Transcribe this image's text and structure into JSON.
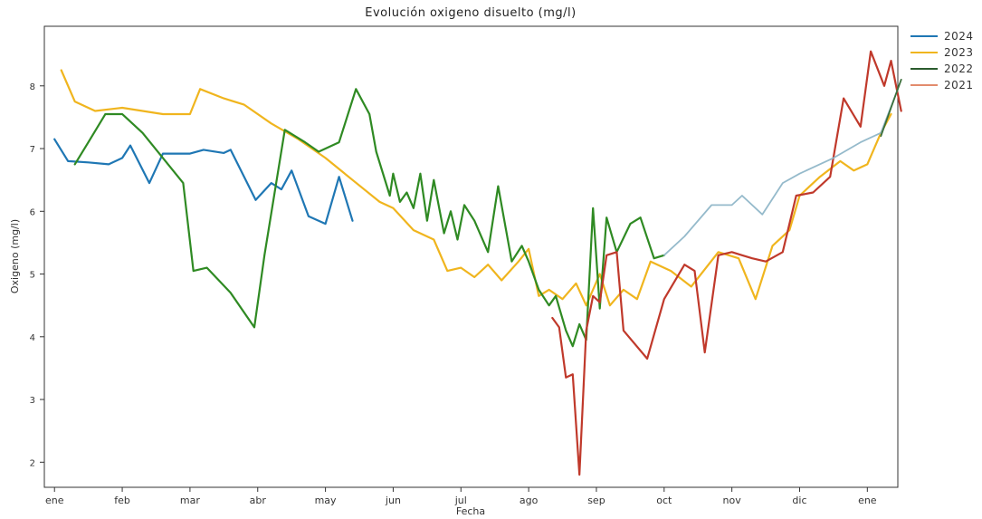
{
  "chart_data": {
    "type": "line",
    "title": "Evolución oxigeno disuelto (mg/l)",
    "xlabel": "Fecha",
    "ylabel": "Oxigeno (mg/l)",
    "x_ticks": [
      "ene",
      "feb",
      "mar",
      "abr",
      "may",
      "jun",
      "jul",
      "ago",
      "sep",
      "oct",
      "nov",
      "dic",
      "ene"
    ],
    "y_ticks": [
      2,
      3,
      4,
      5,
      6,
      7,
      8
    ],
    "ylim": [
      1.6,
      8.95
    ],
    "x_domain_months": [
      -0.15,
      12.45
    ],
    "grid": false,
    "legend_position": "outside-right",
    "series": [
      {
        "name": "2024",
        "color": "#1f77b4",
        "points": [
          [
            0.0,
            7.15
          ],
          [
            0.2,
            6.8
          ],
          [
            0.5,
            6.78
          ],
          [
            0.8,
            6.75
          ],
          [
            1.0,
            6.85
          ],
          [
            1.12,
            7.05
          ],
          [
            1.4,
            6.45
          ],
          [
            1.6,
            6.92
          ],
          [
            2.0,
            6.92
          ],
          [
            2.2,
            6.98
          ],
          [
            2.5,
            6.93
          ],
          [
            2.6,
            6.98
          ],
          [
            2.97,
            6.18
          ],
          [
            3.2,
            6.45
          ],
          [
            3.35,
            6.35
          ],
          [
            3.5,
            6.65
          ],
          [
            3.75,
            5.92
          ],
          [
            4.0,
            5.8
          ],
          [
            4.2,
            6.55
          ],
          [
            4.4,
            5.85
          ]
        ]
      },
      {
        "name": "2023",
        "color": "#f0b51e",
        "points": [
          [
            0.1,
            8.25
          ],
          [
            0.3,
            7.75
          ],
          [
            0.6,
            7.6
          ],
          [
            1.0,
            7.65
          ],
          [
            1.6,
            7.55
          ],
          [
            2.0,
            7.55
          ],
          [
            2.15,
            7.95
          ],
          [
            2.5,
            7.8
          ],
          [
            2.8,
            7.7
          ],
          [
            3.2,
            7.4
          ],
          [
            3.6,
            7.15
          ],
          [
            4.0,
            6.85
          ],
          [
            4.4,
            6.5
          ],
          [
            4.8,
            6.15
          ],
          [
            5.0,
            6.05
          ],
          [
            5.3,
            5.7
          ],
          [
            5.6,
            5.55
          ],
          [
            5.8,
            5.05
          ],
          [
            6.0,
            5.1
          ],
          [
            6.2,
            4.95
          ],
          [
            6.4,
            5.15
          ],
          [
            6.6,
            4.9
          ],
          [
            6.85,
            5.2
          ],
          [
            7.0,
            5.4
          ],
          [
            7.15,
            4.65
          ],
          [
            7.3,
            4.75
          ],
          [
            7.5,
            4.6
          ],
          [
            7.7,
            4.85
          ],
          [
            7.85,
            4.5
          ],
          [
            8.05,
            5.0
          ],
          [
            8.2,
            4.5
          ],
          [
            8.4,
            4.75
          ],
          [
            8.6,
            4.6
          ],
          [
            8.8,
            5.2
          ],
          [
            9.1,
            5.05
          ],
          [
            9.4,
            4.8
          ],
          [
            9.8,
            5.35
          ],
          [
            10.1,
            5.25
          ],
          [
            10.35,
            4.6
          ],
          [
            10.6,
            5.45
          ],
          [
            10.85,
            5.7
          ],
          [
            11.0,
            6.25
          ],
          [
            11.3,
            6.55
          ],
          [
            11.6,
            6.8
          ],
          [
            11.8,
            6.65
          ],
          [
            12.0,
            6.75
          ],
          [
            12.2,
            7.25
          ],
          [
            12.35,
            7.55
          ]
        ]
      },
      {
        "name": "2022",
        "color": "#2f8a23",
        "points": [
          [
            0.3,
            6.75
          ],
          [
            0.5,
            7.1
          ],
          [
            0.75,
            7.55
          ],
          [
            1.0,
            7.55
          ],
          [
            1.3,
            7.25
          ],
          [
            1.6,
            6.85
          ],
          [
            1.9,
            6.45
          ],
          [
            2.05,
            5.05
          ],
          [
            2.25,
            5.1
          ],
          [
            2.6,
            4.7
          ],
          [
            2.95,
            4.15
          ],
          [
            3.1,
            5.3
          ],
          [
            3.4,
            7.3
          ],
          [
            3.7,
            7.1
          ],
          [
            3.9,
            6.95
          ],
          [
            4.2,
            7.1
          ],
          [
            4.45,
            7.95
          ],
          [
            4.65,
            7.55
          ],
          [
            4.75,
            6.95
          ],
          [
            4.95,
            6.25
          ],
          [
            5.0,
            6.6
          ],
          [
            5.1,
            6.15
          ],
          [
            5.2,
            6.3
          ],
          [
            5.3,
            6.05
          ],
          [
            5.4,
            6.6
          ],
          [
            5.5,
            5.85
          ],
          [
            5.6,
            6.5
          ],
          [
            5.75,
            5.65
          ],
          [
            5.85,
            6.0
          ],
          [
            5.95,
            5.55
          ],
          [
            6.05,
            6.1
          ],
          [
            6.2,
            5.85
          ],
          [
            6.4,
            5.35
          ],
          [
            6.55,
            6.4
          ],
          [
            6.75,
            5.2
          ],
          [
            6.9,
            5.45
          ],
          [
            7.0,
            5.2
          ],
          [
            7.15,
            4.75
          ],
          [
            7.3,
            4.5
          ],
          [
            7.4,
            4.65
          ],
          [
            7.55,
            4.1
          ],
          [
            7.65,
            3.85
          ],
          [
            7.75,
            4.2
          ],
          [
            7.85,
            3.95
          ],
          [
            7.95,
            6.05
          ],
          [
            8.05,
            4.45
          ],
          [
            8.15,
            5.9
          ],
          [
            8.3,
            5.35
          ],
          [
            8.5,
            5.8
          ],
          [
            8.65,
            5.9
          ],
          [
            8.85,
            5.25
          ],
          [
            9.0,
            5.3
          ]
        ]
      },
      {
        "name": "2021",
        "color": "#c0392b",
        "points": [
          [
            7.35,
            4.3
          ],
          [
            7.45,
            4.15
          ],
          [
            7.55,
            3.35
          ],
          [
            7.65,
            3.4
          ],
          [
            7.75,
            1.8
          ],
          [
            7.85,
            4.1
          ],
          [
            7.95,
            4.65
          ],
          [
            8.05,
            4.55
          ],
          [
            8.15,
            5.3
          ],
          [
            8.3,
            5.35
          ],
          [
            8.4,
            4.1
          ],
          [
            8.75,
            3.65
          ],
          [
            9.0,
            4.6
          ],
          [
            9.3,
            5.15
          ],
          [
            9.45,
            5.05
          ],
          [
            9.6,
            3.75
          ],
          [
            9.8,
            5.3
          ],
          [
            10.0,
            5.35
          ],
          [
            10.15,
            5.3
          ],
          [
            10.3,
            5.25
          ],
          [
            10.5,
            5.2
          ],
          [
            10.75,
            5.35
          ],
          [
            10.95,
            6.25
          ],
          [
            11.2,
            6.3
          ],
          [
            11.45,
            6.55
          ],
          [
            11.65,
            7.8
          ],
          [
            11.9,
            7.35
          ],
          [
            12.05,
            8.55
          ],
          [
            12.25,
            8.0
          ],
          [
            12.35,
            8.4
          ],
          [
            12.5,
            7.6
          ]
        ]
      },
      {
        "name": "2022",
        "color": "#8fb6c8",
        "points": [
          [
            9.0,
            5.3
          ],
          [
            9.3,
            5.6
          ],
          [
            9.7,
            6.1
          ],
          [
            10.0,
            6.1
          ],
          [
            10.15,
            6.25
          ],
          [
            10.45,
            5.95
          ],
          [
            10.75,
            6.45
          ],
          [
            11.0,
            6.6
          ],
          [
            11.5,
            6.85
          ],
          [
            11.9,
            7.1
          ],
          [
            12.2,
            7.25
          ],
          [
            12.45,
            7.95
          ]
        ]
      },
      {
        "name": "2021",
        "color": "#3b6f3a",
        "points": [
          [
            12.2,
            7.2
          ],
          [
            12.35,
            7.65
          ],
          [
            12.5,
            8.1
          ]
        ]
      }
    ],
    "legend": [
      {
        "label": "2024",
        "color": "#1f77b4"
      },
      {
        "label": "2023",
        "color": "#f0b51e"
      },
      {
        "label": "2022",
        "color": "#2b5b2e"
      },
      {
        "label": "2021",
        "color": "#e28b6d"
      }
    ]
  }
}
